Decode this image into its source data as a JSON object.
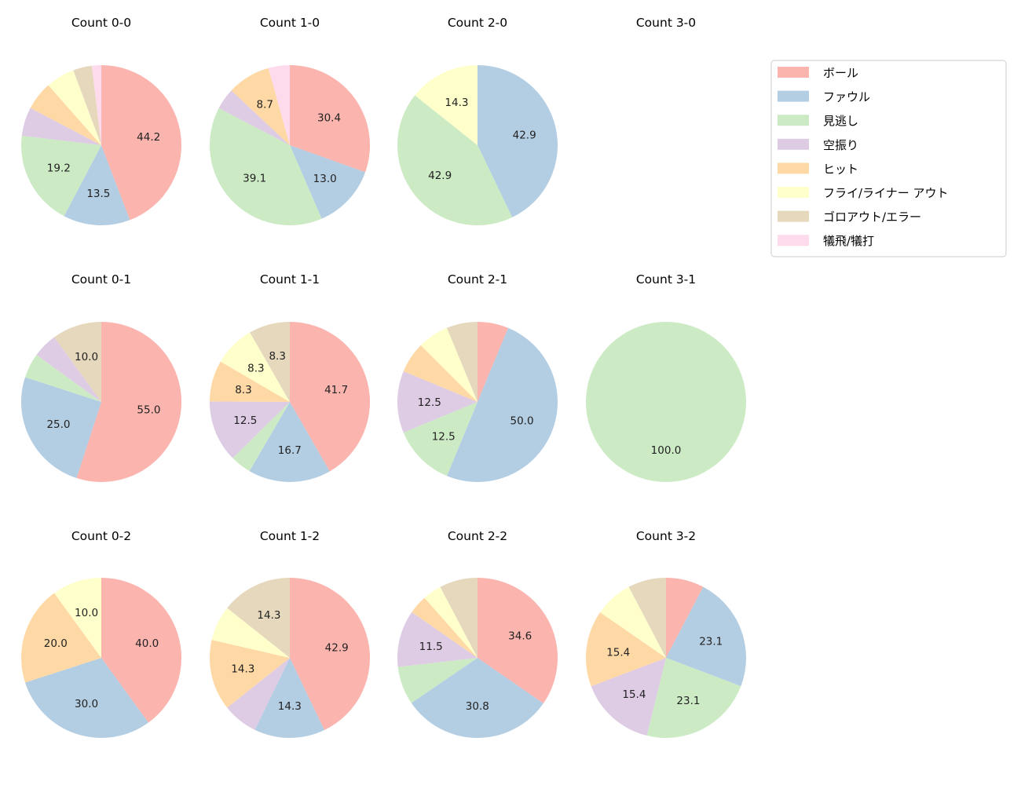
{
  "legend": {
    "placement": "right",
    "entries": [
      "ボール",
      "ファウル",
      "見逃し",
      "空振り",
      "ヒット",
      "フライ/ライナー アウト",
      "ゴロアウト/エラー",
      "犠飛/犠打"
    ]
  },
  "colors": [
    "#fbb4ae",
    "#b3cde3",
    "#ccebc5",
    "#decbe4",
    "#fed9a6",
    "#ffffcc",
    "#e5d8bd",
    "#fddaec"
  ],
  "chart_data": [
    {
      "type": "pie",
      "title": "Count 0-0",
      "values": [
        44.2,
        13.5,
        19.2,
        5.8,
        5.8,
        5.8,
        3.8,
        1.9
      ]
    },
    {
      "type": "pie",
      "title": "Count 1-0",
      "values": [
        30.4,
        13.0,
        39.1,
        4.3,
        8.7,
        0,
        0,
        4.3
      ]
    },
    {
      "type": "pie",
      "title": "Count 2-0",
      "values": [
        0,
        42.9,
        42.9,
        0,
        0,
        14.3,
        0,
        0
      ]
    },
    {
      "type": "pie",
      "title": "Count 3-0",
      "values": []
    },
    {
      "type": "pie",
      "title": "Count 0-1",
      "values": [
        55.0,
        25.0,
        5.0,
        5.0,
        0,
        0,
        10.0,
        0
      ]
    },
    {
      "type": "pie",
      "title": "Count 1-1",
      "values": [
        41.7,
        16.7,
        4.2,
        12.5,
        8.3,
        8.3,
        8.3,
        0
      ]
    },
    {
      "type": "pie",
      "title": "Count 2-1",
      "values": [
        6.25,
        50.0,
        12.5,
        12.5,
        6.25,
        6.25,
        6.25,
        0
      ]
    },
    {
      "type": "pie",
      "title": "Count 3-1",
      "values": [
        0,
        0,
        100.0,
        0,
        0,
        0,
        0,
        0
      ]
    },
    {
      "type": "pie",
      "title": "Count 0-2",
      "values": [
        40.0,
        30.0,
        0,
        0,
        20.0,
        10.0,
        0,
        0
      ]
    },
    {
      "type": "pie",
      "title": "Count 1-2",
      "values": [
        42.9,
        14.3,
        0,
        7.1,
        14.3,
        7.1,
        14.3,
        0
      ]
    },
    {
      "type": "pie",
      "title": "Count 2-2",
      "values": [
        34.6,
        30.8,
        7.7,
        11.5,
        3.8,
        3.8,
        7.7,
        0
      ]
    },
    {
      "type": "pie",
      "title": "Count 3-2",
      "values": [
        7.7,
        23.1,
        23.1,
        15.4,
        15.4,
        7.7,
        7.7,
        0
      ]
    }
  ]
}
